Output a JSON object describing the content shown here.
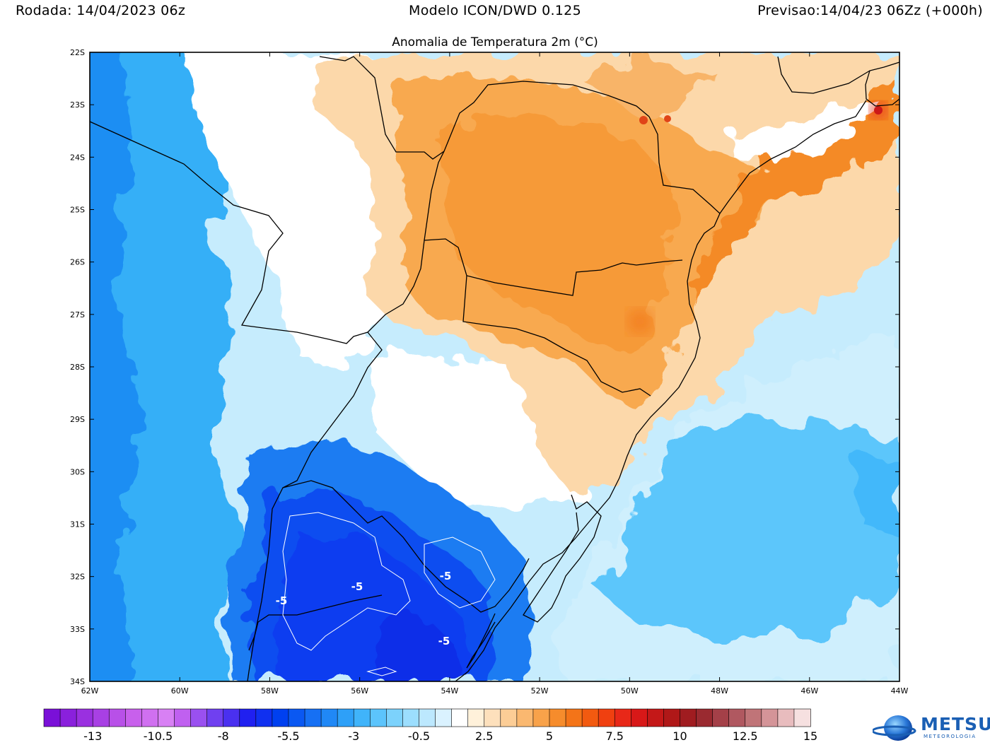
{
  "header": {
    "run": "Rodada: 14/04/2023 06z",
    "model": "Modelo ICON/DWD 0.125",
    "forecast": "Previsao:14/04/23 06Zz (+000h)"
  },
  "map_title": "Anomalia de Temperatura 2m (°C)",
  "map": {
    "lon_range": [
      -62,
      -44
    ],
    "lat_range": [
      -34,
      -22
    ],
    "lon_ticks": [
      "62W",
      "60W",
      "58W",
      "56W",
      "54W",
      "52W",
      "50W",
      "48W",
      "46W",
      "44W"
    ],
    "lat_ticks": [
      "22S",
      "23S",
      "24S",
      "25S",
      "26S",
      "27S",
      "28S",
      "29S",
      "30S",
      "31S",
      "32S",
      "33S",
      "34S"
    ],
    "contour_labels": [
      "-5",
      "-5",
      "-5",
      "-5"
    ]
  },
  "colorbar": {
    "labels": [
      "-13",
      "-10.5",
      "-8",
      "-5.5",
      "-3",
      "-0.5",
      "2.5",
      "5",
      "7.5",
      "10",
      "12.5",
      "15"
    ],
    "colors": [
      "#7a10d8",
      "#8a20dc",
      "#9a30e0",
      "#a840e4",
      "#b850e8",
      "#c860ec",
      "#d070f0",
      "#d880f4",
      "#c060f0",
      "#9a50f0",
      "#7040f0",
      "#4a30f0",
      "#2020f0",
      "#1030f0",
      "#0040f0",
      "#0a58f2",
      "#1670f4",
      "#2088f6",
      "#2ea0f8",
      "#40b4fa",
      "#5cc4fc",
      "#7cd2fc",
      "#9cdefe",
      "#bce8fe",
      "#daf2ff",
      "#ffffff",
      "#fff1da",
      "#fde0bc",
      "#fccd96",
      "#fab870",
      "#f8a24a",
      "#f68c2c",
      "#f47418",
      "#f25a10",
      "#f04010",
      "#e82818",
      "#d81818",
      "#c41818",
      "#b01818",
      "#a01c20",
      "#9a2a30",
      "#a44048",
      "#b05860",
      "#c07478",
      "#d49498",
      "#e8bcbe",
      "#f6e0e0"
    ]
  },
  "logo": {
    "name": "METSUL",
    "sub": "METEOROLOGIA"
  }
}
